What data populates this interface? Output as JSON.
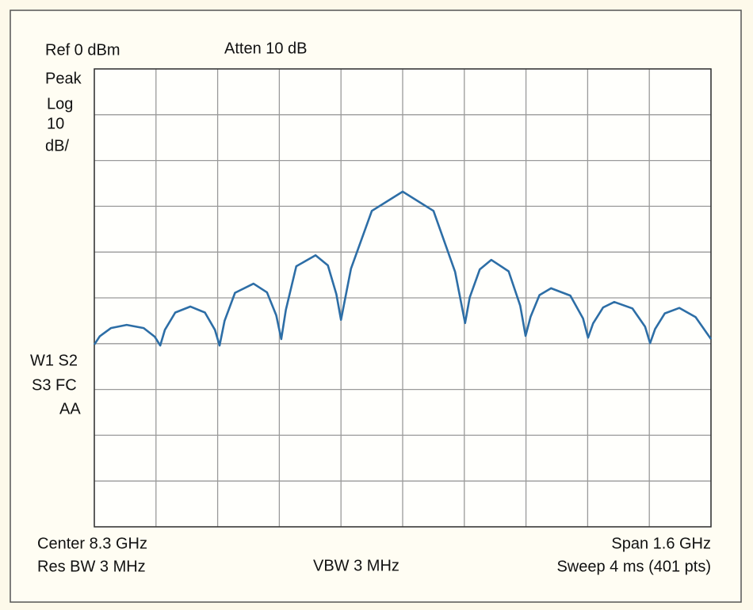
{
  "chart_data": {
    "type": "line",
    "annotations": [
      "Ref 0 dBm",
      "Atten 10 dB",
      "Peak",
      "Log",
      "10",
      "dB/",
      "W1 S2",
      "S3 FC",
      "AA",
      "Center 8.3 GHz",
      "Res BW 3 MHz",
      "VBW 3 MHz",
      "Span 1.6 GHz",
      "Sweep 4 ms (401 pts)"
    ],
    "x": [
      7.5,
      7.514,
      7.543,
      7.584,
      7.628,
      7.657,
      7.671,
      7.683,
      7.71,
      7.749,
      7.787,
      7.813,
      7.825,
      7.838,
      7.865,
      7.913,
      7.948,
      7.972,
      7.985,
      7.997,
      8.024,
      8.074,
      8.106,
      8.128,
      8.14,
      8.166,
      8.22,
      8.3,
      8.38,
      8.436,
      8.462,
      8.474,
      8.5,
      8.53,
      8.575,
      8.605,
      8.619,
      8.632,
      8.655,
      8.685,
      8.735,
      8.768,
      8.781,
      8.794,
      8.82,
      8.849,
      8.896,
      8.929,
      8.942,
      8.955,
      8.98,
      9.018,
      9.06,
      9.1
    ],
    "values": [
      -60.2,
      -58.4,
      -56.6,
      -55.9,
      -56.6,
      -58.5,
      -60.4,
      -57.0,
      -53.2,
      -51.9,
      -53.2,
      -57.0,
      -60.4,
      -55.0,
      -48.9,
      -46.9,
      -48.8,
      -53.8,
      -59.0,
      -52.6,
      -43.1,
      -40.7,
      -42.9,
      -49.2,
      -54.8,
      -43.6,
      -31.0,
      -26.8,
      -31.0,
      -44.3,
      -55.5,
      -49.9,
      -43.8,
      -41.7,
      -44.2,
      -51.7,
      -58.3,
      -54.1,
      -49.4,
      -47.9,
      -49.5,
      -54.5,
      -58.7,
      -55.6,
      -52.1,
      -50.9,
      -52.3,
      -56.3,
      -59.9,
      -56.8,
      -53.4,
      -52.2,
      -54.2,
      -59.0
    ],
    "color": "#2d6ea6",
    "xlim": [
      7.5,
      9.1
    ],
    "ylim": [
      -100,
      0
    ],
    "xticks": [
      7.5,
      7.66,
      7.82,
      7.98,
      8.14,
      8.3,
      8.46,
      8.62,
      8.78,
      8.94,
      9.1
    ],
    "yticks": [
      0,
      -10,
      -20,
      -30,
      -40,
      -50,
      -60,
      -70,
      -80,
      -90,
      -100
    ],
    "grid": true
  }
}
